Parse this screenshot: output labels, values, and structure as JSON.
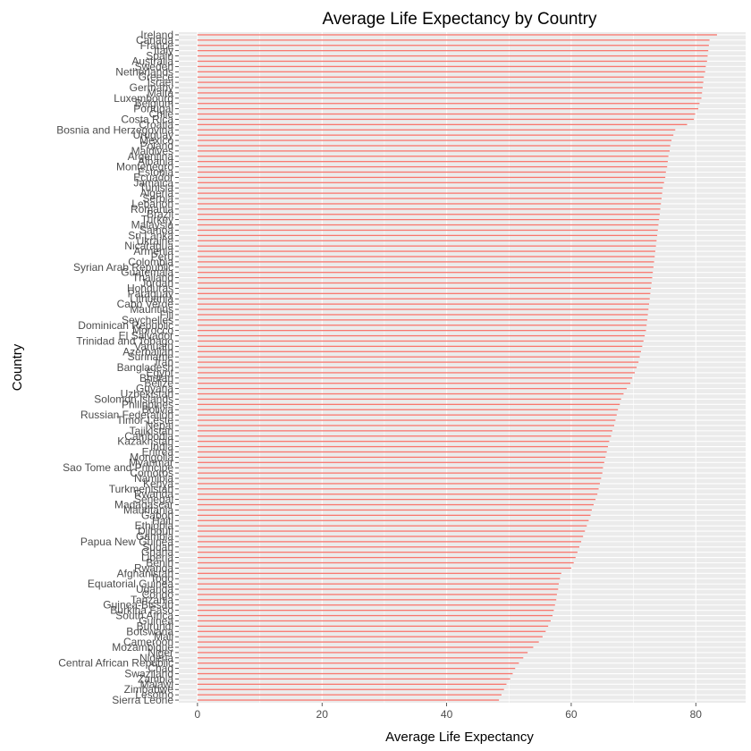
{
  "chart_data": {
    "type": "bar",
    "orientation": "horizontal",
    "title": "Average Life Expectancy by Country",
    "xlabel": "Average Life Expectancy",
    "ylabel": "Country",
    "xlim": [
      -3,
      88
    ],
    "xticks": [
      0,
      20,
      40,
      60,
      80
    ],
    "grid": true,
    "bar_color": "#F8766D",
    "panel_background": "#EBEBEB",
    "grid_color": "#FFFFFF",
    "categories": [
      "Ireland",
      "Canada",
      "France",
      "Italy",
      "Spain",
      "Australia",
      "Sweden",
      "Netherlands",
      "Greece",
      "Israel",
      "Germany",
      "Malta",
      "Luxembourg",
      "Belgium",
      "Portugal",
      "Chile",
      "Costa Rica",
      "Croatia",
      "Bosnia and Herzegovina",
      "Uruguay",
      "Mexico",
      "Poland",
      "Maldives",
      "Argentina",
      "Albania",
      "Montenegro",
      "Estonia",
      "Ecuador",
      "Jamaica",
      "Tunisia",
      "Algeria",
      "Serbia",
      "Lebanon",
      "Romania",
      "Brazil",
      "Turkey",
      "Malaysia",
      "Samoa",
      "Sri Lanka",
      "Ukraine",
      "Nicaragua",
      "Armenia",
      "Peru",
      "Colombia",
      "Syrian Arab Republic",
      "Guatemala",
      "Thailand",
      "Jordan",
      "Honduras",
      "Paraguay",
      "Lithuania",
      "Cabo Verde",
      "Mauritius",
      "Fiji",
      "Seychelles",
      "Dominican Republic",
      "Morocco",
      "El Salvador",
      "Trinidad and Tobago",
      "Vanuatu",
      "Azerbaijan",
      "Suriname",
      "Iran",
      "Bangladesh",
      "Egypt",
      "Bhutan",
      "Belize",
      "Guyana",
      "Uzbekistan",
      "Solomon Islands",
      "Philippines",
      "Bolivia",
      "Russian Federation",
      "Timor-Leste",
      "Nepal",
      "Tajikistan",
      "Cambodia",
      "Kazakhstan",
      "India",
      "Eritrea",
      "Mongolia",
      "Myanmar",
      "Sao Tome and Principe",
      "Comoros",
      "Namibia",
      "Kenya",
      "Turkmenistan",
      "Rwanda",
      "Senegal",
      "Madagascar",
      "Mauritania",
      "Gabon",
      "Haiti",
      "Ethiopia",
      "Djibouti",
      "Gambia",
      "Papua New Guinea",
      "Sudan",
      "Ghana",
      "Liberia",
      "Benin",
      "Rwanda",
      "Afghanistan",
      "Togo",
      "Equatorial Guinea",
      "Uganda",
      "Congo",
      "Tanzania",
      "Guinea-Bissau",
      "Burkina Faso",
      "South Africa",
      "Guinea",
      "Burundi",
      "Botswana",
      "Mali",
      "Cameroon",
      "Mozambique",
      "Niger",
      "Nigeria",
      "Central African Republic",
      "Chad",
      "Swaziland",
      "Zambia",
      "Malawi",
      "Zimbabwe",
      "Lesotho",
      "Sierra Leone"
    ],
    "values": [
      83.4,
      82.2,
      82.1,
      82.0,
      81.9,
      81.8,
      81.6,
      81.5,
      81.3,
      81.2,
      81.1,
      81.0,
      80.9,
      80.6,
      80.4,
      79.9,
      79.7,
      78.6,
      76.7,
      76.4,
      76.1,
      75.9,
      75.8,
      75.6,
      75.5,
      75.4,
      75.2,
      75.1,
      74.9,
      74.7,
      74.6,
      74.5,
      74.4,
      74.3,
      74.2,
      74.1,
      74.0,
      73.9,
      73.8,
      73.7,
      73.6,
      73.5,
      73.4,
      73.3,
      73.2,
      73.1,
      73.0,
      72.9,
      72.8,
      72.7,
      72.6,
      72.5,
      72.4,
      72.3,
      72.2,
      72.1,
      72.0,
      71.8,
      71.6,
      71.4,
      71.2,
      71.0,
      70.8,
      70.5,
      70.2,
      69.8,
      69.5,
      68.9,
      68.4,
      68.0,
      67.8,
      67.5,
      67.3,
      67.1,
      66.9,
      66.6,
      66.4,
      66.1,
      65.9,
      65.7,
      65.5,
      65.3,
      65.1,
      65.0,
      64.8,
      64.6,
      64.4,
      64.2,
      63.9,
      63.6,
      63.3,
      63.1,
      62.8,
      62.5,
      62.2,
      61.9,
      61.6,
      61.3,
      61.0,
      60.7,
      60.4,
      60.0,
      58.4,
      58.2,
      58.0,
      57.9,
      57.7,
      57.6,
      57.4,
      57.2,
      57.0,
      56.7,
      56.3,
      55.9,
      55.4,
      54.8,
      53.9,
      53.0,
      52.3,
      51.6,
      51.0,
      50.6,
      50.2,
      49.6,
      49.2,
      48.8,
      48.4
    ]
  }
}
